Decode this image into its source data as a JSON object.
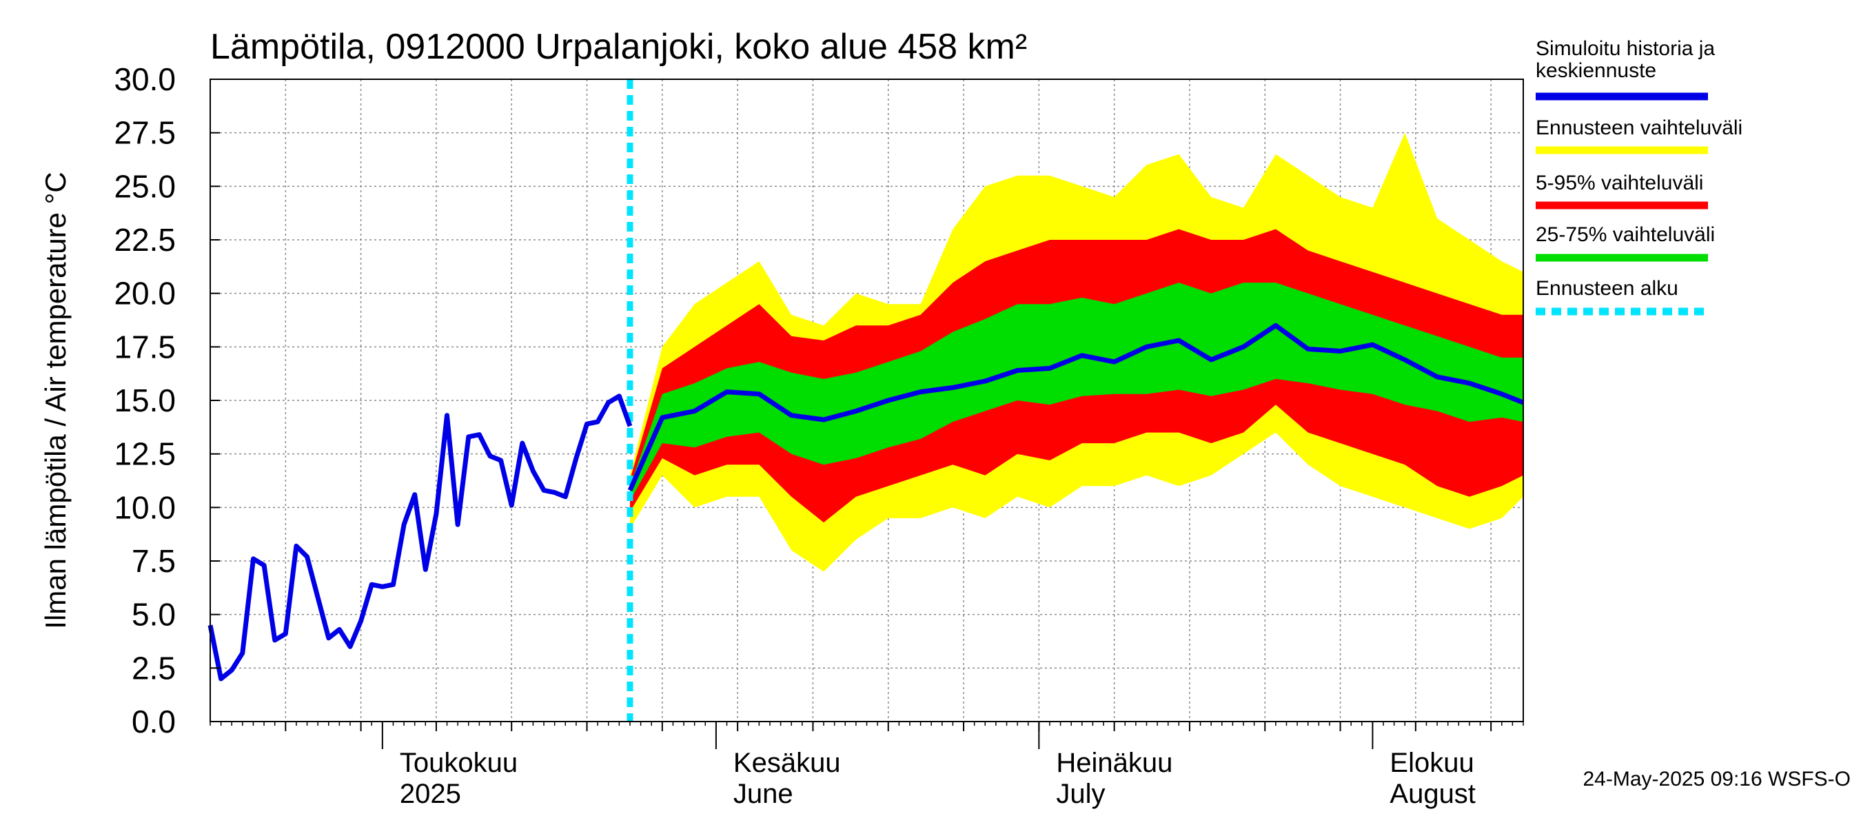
{
  "chart_data": {
    "type": "area",
    "title": "Lämpötila, 0912000 Urpalanjoki, koko alue 458 km²",
    "ylabel": "Ilman lämpötila / Air temperature   °C",
    "ylim": [
      0,
      30
    ],
    "yticks": [
      "0.0",
      "2.5",
      "5.0",
      "7.5",
      "10.0",
      "12.5",
      "15.0",
      "17.5",
      "20.0",
      "22.5",
      "25.0",
      "27.5",
      "30.0"
    ],
    "x_start": "2025-04-15",
    "x_end": "2025-08-15",
    "grid": true,
    "months": [
      {
        "date": "2025-05-01",
        "line1": "Toukokuu",
        "line2": "2025"
      },
      {
        "date": "2025-06-01",
        "line1": "Kesäkuu",
        "line2": "June"
      },
      {
        "date": "2025-07-01",
        "line1": "Heinäkuu",
        "line2": "July"
      },
      {
        "date": "2025-08-01",
        "line1": "Elokuu",
        "line2": "August"
      }
    ],
    "forecast_start": "2025-05-24",
    "history": {
      "dates": [
        "2025-04-15",
        "2025-04-16",
        "2025-04-17",
        "2025-04-18",
        "2025-04-19",
        "2025-04-20",
        "2025-04-21",
        "2025-04-22",
        "2025-04-23",
        "2025-04-24",
        "2025-04-25",
        "2025-04-26",
        "2025-04-27",
        "2025-04-28",
        "2025-04-29",
        "2025-04-30",
        "2025-05-01",
        "2025-05-02",
        "2025-05-03",
        "2025-05-04",
        "2025-05-05",
        "2025-05-06",
        "2025-05-07",
        "2025-05-08",
        "2025-05-09",
        "2025-05-10",
        "2025-05-11",
        "2025-05-12",
        "2025-05-13",
        "2025-05-14",
        "2025-05-15",
        "2025-05-16",
        "2025-05-17",
        "2025-05-18",
        "2025-05-19",
        "2025-05-20",
        "2025-05-21",
        "2025-05-22",
        "2025-05-23",
        "2025-05-24"
      ],
      "values": [
        4.5,
        2.0,
        2.4,
        3.2,
        7.6,
        7.3,
        3.8,
        4.1,
        8.2,
        7.7,
        5.8,
        3.9,
        4.3,
        3.5,
        4.7,
        6.4,
        6.3,
        6.4,
        9.2,
        10.6,
        7.1,
        9.7,
        14.3,
        9.2,
        13.3,
        13.4,
        12.4,
        12.2,
        10.1,
        13.0,
        11.7,
        10.8,
        10.7,
        10.5,
        12.3,
        13.9,
        14.0,
        14.9,
        15.2,
        13.8
      ]
    },
    "bands": {
      "dates": [
        "2025-05-24",
        "2025-05-27",
        "2025-05-30",
        "2025-06-02",
        "2025-06-05",
        "2025-06-08",
        "2025-06-11",
        "2025-06-14",
        "2025-06-17",
        "2025-06-20",
        "2025-06-23",
        "2025-06-26",
        "2025-06-29",
        "2025-07-02",
        "2025-07-05",
        "2025-07-08",
        "2025-07-11",
        "2025-07-14",
        "2025-07-17",
        "2025-07-20",
        "2025-07-23",
        "2025-07-26",
        "2025-07-29",
        "2025-08-01",
        "2025-08-04",
        "2025-08-07",
        "2025-08-10",
        "2025-08-13",
        "2025-08-15"
      ],
      "max": [
        11.5,
        17.5,
        19.5,
        20.5,
        21.5,
        19.0,
        18.5,
        20.0,
        19.5,
        19.5,
        23.0,
        25.0,
        25.5,
        25.5,
        25.0,
        24.5,
        26.0,
        26.5,
        24.5,
        24.0,
        26.5,
        25.5,
        24.5,
        24.0,
        27.5,
        23.5,
        22.5,
        21.5,
        21.0
      ],
      "p95": [
        11.3,
        16.5,
        17.5,
        18.5,
        19.5,
        18.0,
        17.8,
        18.5,
        18.5,
        19.0,
        20.5,
        21.5,
        22.0,
        22.5,
        22.5,
        22.5,
        22.5,
        23.0,
        22.5,
        22.5,
        23.0,
        22.0,
        21.5,
        21.0,
        20.5,
        20.0,
        19.5,
        19.0,
        19.0
      ],
      "p75": [
        11.0,
        15.3,
        15.8,
        16.5,
        16.8,
        16.3,
        16.0,
        16.3,
        16.8,
        17.3,
        18.2,
        18.8,
        19.5,
        19.5,
        19.8,
        19.5,
        20.0,
        20.5,
        20.0,
        20.5,
        20.5,
        20.0,
        19.5,
        19.0,
        18.5,
        18.0,
        17.5,
        17.0,
        17.0
      ],
      "p25": [
        10.3,
        13.0,
        12.8,
        13.3,
        13.5,
        12.5,
        12.0,
        12.3,
        12.8,
        13.2,
        14.0,
        14.5,
        15.0,
        14.8,
        15.2,
        15.3,
        15.3,
        15.5,
        15.2,
        15.5,
        16.0,
        15.8,
        15.5,
        15.3,
        14.8,
        14.5,
        14.0,
        14.2,
        14.0
      ],
      "p5": [
        9.8,
        12.3,
        11.5,
        12.0,
        12.0,
        10.5,
        9.3,
        10.5,
        11.0,
        11.5,
        12.0,
        11.5,
        12.5,
        12.2,
        13.0,
        13.0,
        13.5,
        13.5,
        13.0,
        13.5,
        14.8,
        13.5,
        13.0,
        12.5,
        12.0,
        11.0,
        10.5,
        11.0,
        11.5
      ],
      "min": [
        9.0,
        11.5,
        10.0,
        10.5,
        10.5,
        8.0,
        7.0,
        8.5,
        9.5,
        9.5,
        10.0,
        9.5,
        10.5,
        10.0,
        11.0,
        11.0,
        11.5,
        11.0,
        11.5,
        12.5,
        13.5,
        12.0,
        11.0,
        10.5,
        10.0,
        9.5,
        9.0,
        9.5,
        10.5
      ],
      "mean": [
        10.8,
        14.2,
        14.5,
        15.4,
        15.3,
        14.3,
        14.1,
        14.5,
        15.0,
        15.4,
        15.6,
        15.9,
        16.4,
        16.5,
        17.1,
        16.8,
        17.5,
        17.8,
        16.9,
        17.5,
        18.5,
        17.4,
        17.3,
        17.6,
        16.9,
        16.1,
        15.8,
        15.3,
        14.9
      ]
    },
    "legend": [
      {
        "label": "Simuloitu historia ja\nkeskiennuste",
        "line1": "Simuloitu historia ja",
        "line2": "keskiennuste",
        "color": "#0000e6",
        "style": "solid"
      },
      {
        "label": "Ennusteen vaihteluväli",
        "color": "#ffff00",
        "style": "solid"
      },
      {
        "label": "5-95% vaihteluväli",
        "color": "#ff0000",
        "style": "solid"
      },
      {
        "label": "25-75% vaihteluväli",
        "color": "#00dd00",
        "style": "solid"
      },
      {
        "label": "Ennusteen alku",
        "color": "#00e5ff",
        "style": "dashed"
      }
    ],
    "legend_position": "right",
    "footer": "24-May-2025 09:16 WSFS-O"
  }
}
